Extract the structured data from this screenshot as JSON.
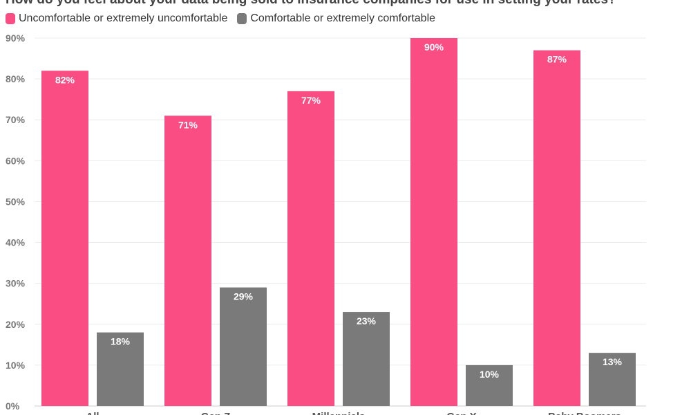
{
  "chart_data": {
    "type": "bar",
    "title": "How do you feel about your data being sold to insurance companies for use in setting your rates?",
    "xlabel": "",
    "ylabel": "",
    "ylim": [
      0,
      90
    ],
    "y_ticks": [
      "0%",
      "10%",
      "20%",
      "30%",
      "40%",
      "50%",
      "60%",
      "70%",
      "80%",
      "90%"
    ],
    "categories": [
      "All",
      "Gen Z",
      "Millennials",
      "Gen X",
      "Baby Boomers"
    ],
    "series": [
      {
        "name": "Uncomfortable or extremely uncomfortable",
        "color": "#fa4d83",
        "values": [
          82,
          71,
          77,
          90,
          87
        ],
        "labels": [
          "82%",
          "71%",
          "77%",
          "90%",
          "87%"
        ]
      },
      {
        "name": "Comfortable or extremely comfortable",
        "color": "#7a7a7a",
        "values": [
          18,
          29,
          23,
          10,
          13
        ],
        "labels": [
          "18%",
          "29%",
          "23%",
          "10%",
          "13%"
        ]
      }
    ],
    "grid": true,
    "legend_position": "top-left"
  }
}
